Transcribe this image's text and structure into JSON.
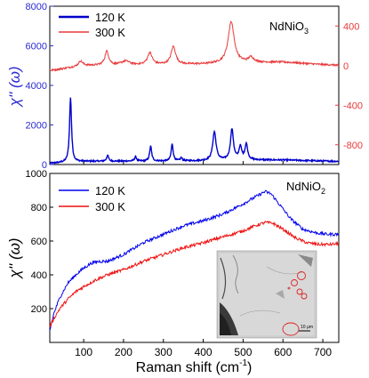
{
  "chart_data": [
    {
      "type": "line",
      "title": "",
      "annotation": "NdNiO3",
      "annotation_main": "NdNiO",
      "annotation_sub": "3",
      "ylabel": "χ'' (ω)",
      "xlim": [
        15,
        740
      ],
      "ylim_left": [
        0,
        8000
      ],
      "ylim_right": [
        -1000,
        600
      ],
      "yticks_left": [
        "0",
        "2000",
        "4000",
        "6000",
        "8000"
      ],
      "yticks_right": [
        "-800",
        "-400",
        "0",
        "400"
      ],
      "legend_position": "top-left",
      "colors": {
        "120K": "#0000cc",
        "300K": "#e8393a",
        "left_axis": "#2a2ad0",
        "right_axis": "#e8393a"
      },
      "series": [
        {
          "name": "120 K",
          "axis": "left",
          "baseline": [
            [
              15,
              60
            ],
            [
              100,
              160
            ],
            [
              200,
              170
            ],
            [
              300,
              175
            ],
            [
              400,
              190
            ],
            [
              500,
              230
            ],
            [
              600,
              230
            ],
            [
              700,
              180
            ],
            [
              740,
              160
            ]
          ],
          "peaks": [
            {
              "x": 67,
              "amp": 3250,
              "w": 3
            },
            {
              "x": 160,
              "amp": 300,
              "w": 3
            },
            {
              "x": 230,
              "amp": 220,
              "w": 3
            },
            {
              "x": 268,
              "amp": 750,
              "w": 3
            },
            {
              "x": 322,
              "amp": 850,
              "w": 3
            },
            {
              "x": 345,
              "amp": 150,
              "w": 3
            },
            {
              "x": 428,
              "amp": 1450,
              "w": 5
            },
            {
              "x": 472,
              "amp": 1550,
              "w": 4.5
            },
            {
              "x": 493,
              "amp": 650,
              "w": 4
            },
            {
              "x": 508,
              "amp": 800,
              "w": 4
            }
          ]
        },
        {
          "name": "300 K",
          "axis": "right",
          "baseline": [
            [
              15,
              -50
            ],
            [
              100,
              0
            ],
            [
              200,
              5
            ],
            [
              300,
              10
            ],
            [
              400,
              15
            ],
            [
              500,
              30
            ],
            [
              600,
              35
            ],
            [
              700,
              10
            ],
            [
              740,
              5
            ]
          ],
          "peaks": [
            {
              "x": 92,
              "amp": 50,
              "w": 6
            },
            {
              "x": 158,
              "amp": 140,
              "w": 6
            },
            {
              "x": 205,
              "amp": 40,
              "w": 12
            },
            {
              "x": 266,
              "amp": 120,
              "w": 7
            },
            {
              "x": 325,
              "amp": 180,
              "w": 7
            },
            {
              "x": 470,
              "amp": 420,
              "w": 9
            },
            {
              "x": 520,
              "amp": 50,
              "w": 8
            }
          ]
        }
      ]
    },
    {
      "type": "line",
      "title": "",
      "annotation": "NdNiO2",
      "annotation_main": "NdNiO",
      "annotation_sub": "2",
      "xlabel": "Raman shift (cm-1)",
      "xlabel_main": "Raman shift (cm",
      "xlabel_sup": "-1",
      "xlabel_close": ")",
      "ylabel": "χ'' (ω)",
      "xlim": [
        15,
        740
      ],
      "ylim": [
        0,
        1000
      ],
      "xticks": [
        "100",
        "200",
        "300",
        "400",
        "500",
        "600",
        "700"
      ],
      "yticks": [
        "200",
        "400",
        "600",
        "800",
        "1000"
      ],
      "legend_position": "top-left",
      "colors": {
        "120K": "#0000ee",
        "300K": "#ee1111"
      },
      "series": [
        {
          "name": "120 K",
          "x": [
            15,
            25,
            40,
            60,
            80,
            100,
            120,
            140,
            160,
            200,
            250,
            300,
            350,
            400,
            450,
            500,
            530,
            555,
            570,
            590,
            620,
            650,
            680,
            710,
            740
          ],
          "y": [
            70,
            170,
            265,
            350,
            400,
            440,
            470,
            480,
            480,
            520,
            590,
            640,
            690,
            720,
            760,
            820,
            860,
            893,
            880,
            820,
            730,
            670,
            650,
            640,
            640
          ]
        },
        {
          "name": "300 K",
          "x": [
            15,
            25,
            40,
            60,
            80,
            100,
            130,
            160,
            200,
            250,
            300,
            350,
            400,
            450,
            500,
            530,
            555,
            575,
            600,
            630,
            660,
            690,
            720,
            740
          ],
          "y": [
            95,
            140,
            200,
            255,
            300,
            330,
            370,
            400,
            430,
            480,
            520,
            560,
            590,
            625,
            660,
            690,
            710,
            705,
            670,
            620,
            590,
            580,
            580,
            585
          ]
        }
      ]
    }
  ]
}
